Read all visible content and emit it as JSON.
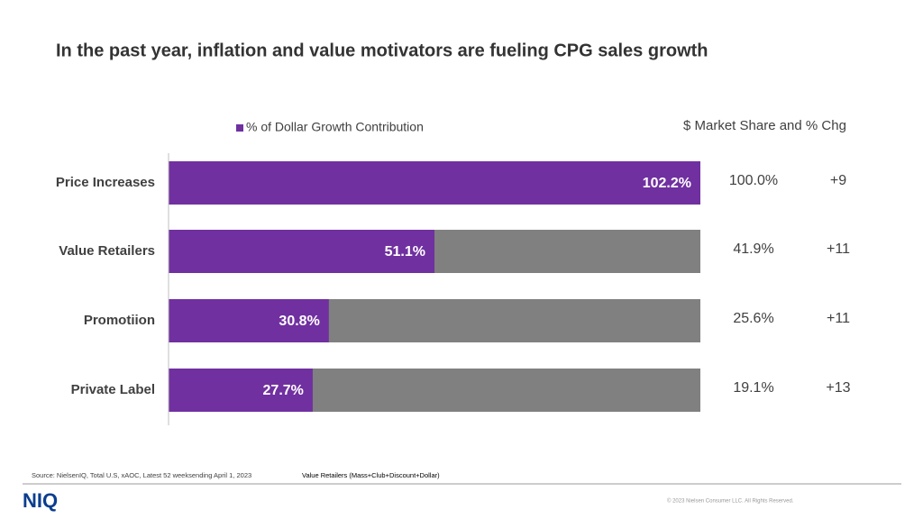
{
  "chart_data": {
    "type": "hbar",
    "title": "In the past year, inflation and value motivators are fueling CPG sales growth",
    "categories": [
      "Price Increases",
      "Value Retailers",
      "Promotiion",
      "Private Label"
    ],
    "series": [
      {
        "name": "% of Dollar Growth Contribution",
        "color": "#7030a0",
        "values": [
          102.2,
          51.1,
          30.8,
          27.7
        ],
        "value_labels": [
          "102.2%",
          "51.1%",
          "30.8%",
          "27.7%"
        ]
      }
    ],
    "xlim": [
      0,
      102.2
    ],
    "track_color": "#808080"
  },
  "side_table": {
    "header": "$ Market Share and % Chg",
    "share": [
      "100.0%",
      "41.9%",
      "25.6%",
      "19.1%"
    ],
    "change": [
      "+9",
      "+11",
      "+11",
      "+13"
    ]
  },
  "footer": {
    "source": "Source: NielsenIQ, Total U.S, xAOC, Latest 52 weeksending April 1, 2023",
    "note": "Value Retailers (Mass+Club+Discount+Dollar)",
    "logo": "NIQ",
    "copyright": "© 2023 Nielsen Consumer LLC. All Rights Reserved."
  }
}
